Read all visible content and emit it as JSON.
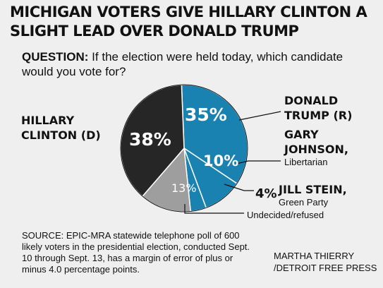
{
  "title": "MICHIGAN VOTERS GIVE HILLARY CLINTON A SLIGHT LEAD OVER DONALD TRUMP",
  "question_label": "QUESTION:",
  "question_text": " If the election were held today, which candidate would you vote for?",
  "labels": {
    "clinton_line1": "HILLARY",
    "clinton_line2": "CLINTON (D)",
    "trump_line1": "DONALD",
    "trump_line2": "TRUMP (R)",
    "johnson_line1": "GARY",
    "johnson_line2": "JOHNSON,",
    "johnson_party": "Libertarian",
    "stein_name": "JILL STEIN,",
    "stein_party": "Green Party",
    "undecided": "Undecided/refused"
  },
  "pct_labels": {
    "trump": "35%",
    "clinton": "38%",
    "johnson": "10%",
    "stein": "4%",
    "undecided": "13%"
  },
  "source": "SOURCE: EPIC-MRA statewide telephone poll of 600 likely voters in the presidential election, conducted Sept. 10 through Sept. 13, has a margin of error of plus or minus 4.0 percentage points.",
  "credit_line1": "MARTHA THIERRY",
  "credit_line2": "/DETROIT FREE PRESS",
  "chart_data": {
    "type": "pie",
    "title": "MICHIGAN VOTERS GIVE HILLARY CLINTON A SLIGHT LEAD OVER DONALD TRUMP",
    "slices": [
      {
        "label": "DONALD TRUMP (R)",
        "value": 35,
        "color": "#1a82b0"
      },
      {
        "label": "GARY JOHNSON, Libertarian",
        "value": 10,
        "color": "#1a82b0"
      },
      {
        "label": "JILL STEIN, Green Party",
        "value": 4,
        "color": "#1a82b0"
      },
      {
        "label": "Undecided/refused",
        "value": 13,
        "color": "#9e9e9e"
      },
      {
        "label": "HILLARY CLINTON (D)",
        "value": 38,
        "color": "#262626"
      }
    ]
  }
}
